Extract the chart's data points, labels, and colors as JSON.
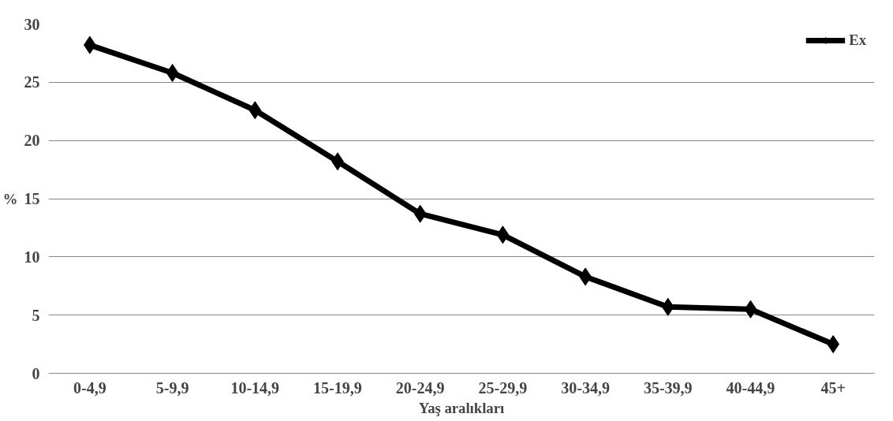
{
  "chart_data": {
    "type": "line",
    "xlabel": "Yaş aralıkları",
    "ylabel": "%",
    "categories": [
      "0-4,9",
      "5-9,9",
      "10-14,9",
      "15-19,9",
      "20-24,9",
      "25-29,9",
      "30-34,9",
      "35-39,9",
      "40-44,9",
      "45+"
    ],
    "series": [
      {
        "name": "Ex",
        "color": "#000000",
        "values": [
          28.2,
          25.8,
          22.6,
          18.2,
          13.7,
          11.9,
          8.3,
          5.7,
          5.5,
          2.5
        ]
      }
    ],
    "ylim": [
      0,
      30
    ],
    "yticks": [
      0,
      5,
      10,
      15,
      20,
      25,
      30
    ],
    "grid": "y",
    "legend": "top right",
    "marker": "diamond",
    "line_style": "solid"
  }
}
